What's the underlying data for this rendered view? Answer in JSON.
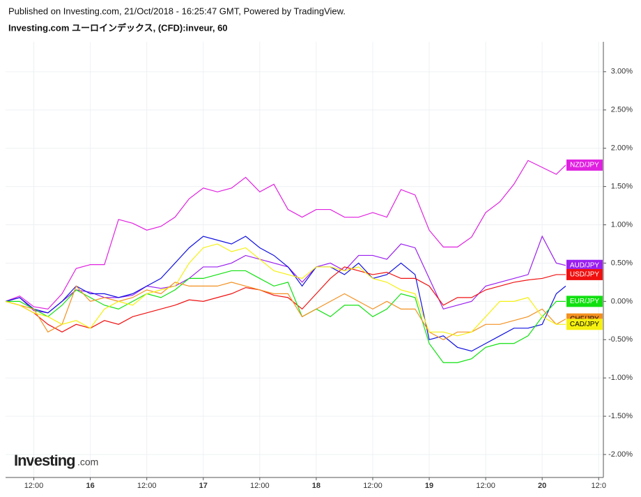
{
  "header": {
    "published": "Published on Investing.com, 21/Oct/2018 - 16:25:47 GMT, Powered by TradingView.",
    "title": "Investing.com ユーロインデックス, (CFD):inveur, 60"
  },
  "logo": {
    "brand": "Investing",
    "suffix": ".com"
  },
  "chart_data": {
    "type": "line",
    "grid": true,
    "x": [
      6,
      9,
      12,
      15,
      18,
      21,
      24,
      27,
      30,
      33,
      36,
      39,
      42,
      45,
      48,
      51,
      54,
      57,
      60,
      63,
      66,
      69,
      72,
      75,
      78,
      81,
      84,
      87,
      90,
      93,
      96,
      99,
      102,
      105,
      108,
      111,
      114,
      117,
      120,
      123,
      125
    ],
    "xlim": [
      6,
      133
    ],
    "xticks": [
      {
        "value": 12,
        "label": "12:00"
      },
      {
        "value": 24,
        "label": "16"
      },
      {
        "value": 36,
        "label": "12:00"
      },
      {
        "value": 48,
        "label": "17"
      },
      {
        "value": 60,
        "label": "12:00"
      },
      {
        "value": 72,
        "label": "18"
      },
      {
        "value": 84,
        "label": "12:00"
      },
      {
        "value": 96,
        "label": "19"
      },
      {
        "value": 108,
        "label": "12:00"
      },
      {
        "value": 120,
        "label": "20"
      },
      {
        "value": 132,
        "label": "12:0"
      }
    ],
    "ylim": [
      -2.3,
      3.39
    ],
    "yticks": [
      {
        "value": 3,
        "label": "3.00%"
      },
      {
        "value": 2.5,
        "label": "2.50%"
      },
      {
        "value": 2,
        "label": "2.00%"
      },
      {
        "value": 1.5,
        "label": "1.50%"
      },
      {
        "value": 1,
        "label": "1.00%"
      },
      {
        "value": 0.5,
        "label": "0.50%"
      },
      {
        "value": 0,
        "label": "0.00%"
      },
      {
        "value": -0.5,
        "label": "-0.50%"
      },
      {
        "value": -1,
        "label": "-1.00%"
      },
      {
        "value": -1.5,
        "label": "-1.50%"
      },
      {
        "value": -2,
        "label": "-2.00%"
      }
    ],
    "series": [
      {
        "name": "NZD/JPY",
        "color": "#e020e0",
        "values": [
          0,
          0.07,
          -0.07,
          -0.1,
          0.1,
          0.43,
          0.48,
          0.48,
          1.07,
          1.02,
          0.93,
          0.98,
          1.1,
          1.34,
          1.48,
          1.43,
          1.48,
          1.62,
          1.43,
          1.53,
          1.2,
          1.1,
          1.2,
          1.2,
          1.1,
          1.1,
          1.16,
          1.1,
          1.46,
          1.39,
          0.93,
          0.71,
          0.71,
          0.84,
          1.16,
          1.3,
          1.53,
          1.84,
          1.75,
          1.66,
          1.78
        ]
      },
      {
        "name": "AUD/JPY",
        "color": "#9a1ff0",
        "values": [
          0,
          0.05,
          -0.12,
          -0.15,
          0,
          0.15,
          0.12,
          0.05,
          0.05,
          0.08,
          0.2,
          0.17,
          0.2,
          0.3,
          0.45,
          0.45,
          0.5,
          0.6,
          0.55,
          0.5,
          0.45,
          0.25,
          0.45,
          0.5,
          0.4,
          0.6,
          0.6,
          0.55,
          0.75,
          0.7,
          0.3,
          -0.1,
          -0.05,
          0,
          0.2,
          0.25,
          0.3,
          0.35,
          0.85,
          0.5,
          0.47
        ]
      },
      {
        "color": "#1010e0",
        "values": [
          0,
          0.05,
          -0.1,
          -0.15,
          0,
          0.2,
          0.1,
          0.1,
          0.05,
          0.1,
          0.2,
          0.3,
          0.5,
          0.7,
          0.85,
          0.8,
          0.75,
          0.85,
          0.7,
          0.6,
          0.45,
          0.2,
          0.45,
          0.45,
          0.35,
          0.5,
          0.3,
          0.35,
          0.5,
          0.35,
          -0.5,
          -0.45,
          -0.6,
          -0.65,
          -0.55,
          -0.45,
          -0.35,
          -0.35,
          -0.3,
          0.1,
          0.2
        ]
      },
      {
        "name": "USD/JPY",
        "color": "#f01010",
        "values": [
          0,
          -0.05,
          -0.15,
          -0.3,
          -0.4,
          -0.3,
          -0.35,
          -0.25,
          -0.3,
          -0.2,
          -0.15,
          -0.1,
          -0.05,
          0.02,
          0,
          0.05,
          0.1,
          0.18,
          0.15,
          0.08,
          0.05,
          -0.1,
          0.1,
          0.3,
          0.45,
          0.4,
          0.35,
          0.38,
          0.3,
          0.3,
          0.2,
          -0.05,
          0.05,
          0.05,
          0.15,
          0.2,
          0.25,
          0.28,
          0.3,
          0.35,
          0.35
        ]
      },
      {
        "name": "EUR/JPY",
        "color": "#10e010",
        "values": [
          0,
          0,
          -0.1,
          -0.2,
          -0.05,
          0.15,
          0.05,
          -0.05,
          -0.1,
          0,
          0.1,
          0.05,
          0.15,
          0.3,
          0.3,
          0.35,
          0.4,
          0.4,
          0.3,
          0.2,
          0.25,
          -0.2,
          -0.1,
          -0.2,
          -0.05,
          -0.05,
          -0.2,
          -0.1,
          0.1,
          0.05,
          -0.55,
          -0.8,
          -0.8,
          -0.75,
          -0.6,
          -0.55,
          -0.55,
          -0.45,
          -0.2,
          0,
          0
        ]
      },
      {
        "name": "CHF/JPY",
        "color": "#f39020",
        "values": [
          0,
          -0.05,
          -0.1,
          -0.4,
          -0.3,
          0.2,
          0,
          0.05,
          0,
          0.05,
          0.15,
          0.1,
          0.25,
          0.2,
          0.2,
          0.2,
          0.25,
          0.2,
          0.15,
          0.1,
          0.1,
          -0.2,
          -0.1,
          0,
          0.1,
          0,
          -0.1,
          0,
          -0.1,
          -0.1,
          -0.4,
          -0.5,
          -0.4,
          -0.4,
          -0.3,
          -0.3,
          -0.25,
          -0.2,
          -0.1,
          -0.3,
          -0.23
        ]
      },
      {
        "name": "CAD/JPY",
        "color": "#f5f010",
        "values": [
          0,
          -0.05,
          -0.15,
          -0.2,
          -0.3,
          -0.25,
          -0.35,
          -0.1,
          0,
          -0.05,
          0.1,
          0.15,
          0.2,
          0.5,
          0.7,
          0.75,
          0.65,
          0.7,
          0.55,
          0.4,
          0.35,
          0.3,
          0.45,
          0.45,
          0.4,
          0.45,
          0.3,
          0.25,
          0.15,
          0.1,
          -0.4,
          -0.4,
          -0.45,
          -0.4,
          -0.2,
          0,
          0,
          0.05,
          -0.2,
          -0.3,
          -0.3
        ]
      }
    ]
  }
}
